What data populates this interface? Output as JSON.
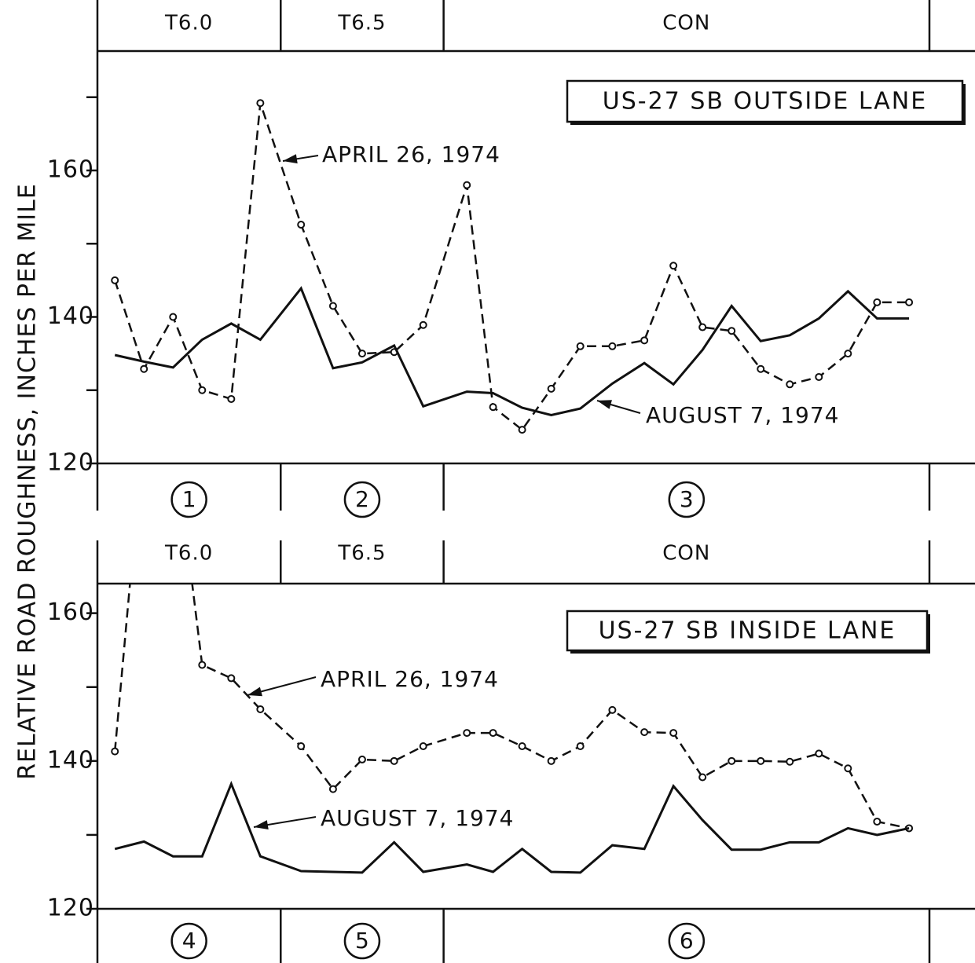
{
  "ylabel": "RELATIVE ROAD ROUGHNESS, INCHES PER MILE",
  "chart_data": [
    {
      "type": "line",
      "title": "US-27 SB OUTSIDE LANE",
      "xlim": [
        0,
        28.6
      ],
      "ylim": [
        120,
        176.3
      ],
      "yticks": [
        120,
        140,
        160
      ],
      "minor_yticks": [
        130,
        150,
        170
      ],
      "sections": [
        {
          "label": "T6.0",
          "number": "1"
        },
        {
          "label": "T6.5",
          "number": "2"
        },
        {
          "label": "CON",
          "number": "3"
        }
      ],
      "section_edges": [
        6.3,
        11.9
      ],
      "x": [
        0.6,
        1.6,
        2.6,
        3.6,
        4.6,
        5.6,
        7.0,
        8.1,
        9.1,
        10.2,
        11.2,
        12.7,
        13.6,
        14.6,
        15.6,
        16.6,
        17.7,
        18.8,
        19.8,
        20.8,
        21.8,
        22.8,
        23.8,
        24.8,
        25.8,
        26.8,
        27.9
      ],
      "series": [
        {
          "name": "APRIL 26, 1974",
          "color": "#111",
          "dashed": true,
          "markers": true,
          "values": [
            145.0,
            132.9,
            140.0,
            130.0,
            128.8,
            169.2,
            152.6,
            141.5,
            135.0,
            135.2,
            138.9,
            158.0,
            127.7,
            124.6,
            130.2,
            136.0,
            136.0,
            136.8,
            147.0,
            138.6,
            138.1,
            132.9,
            130.8,
            131.8,
            135.0,
            142.0,
            142.0
          ]
        },
        {
          "name": "AUGUST 7, 1974",
          "color": "#111",
          "dashed": false,
          "markers": false,
          "values": [
            134.8,
            133.9,
            133.1,
            136.9,
            139.1,
            136.9,
            143.9,
            133.0,
            133.8,
            136.1,
            127.8,
            129.8,
            129.6,
            127.6,
            126.6,
            127.5,
            130.9,
            133.7,
            130.8,
            135.5,
            141.5,
            136.7,
            137.5,
            139.8,
            143.5,
            139.8,
            139.8
          ]
        }
      ]
    },
    {
      "type": "line",
      "title": "US-27 SB INSIDE LANE",
      "xlim": [
        0,
        28.6
      ],
      "ylim": [
        120,
        164
      ],
      "yticks": [
        120,
        140,
        160
      ],
      "minor_yticks": [
        130,
        150
      ],
      "sections": [
        {
          "label": "T6.0",
          "number": "4"
        },
        {
          "label": "T6.5",
          "number": "5"
        },
        {
          "label": "CON",
          "number": "6"
        }
      ],
      "section_edges": [
        6.3,
        11.9
      ],
      "x": [
        0.6,
        1.6,
        2.6,
        3.6,
        4.6,
        5.6,
        7.0,
        8.1,
        9.1,
        10.2,
        11.2,
        12.7,
        13.6,
        14.6,
        15.6,
        16.6,
        17.7,
        18.8,
        19.8,
        20.8,
        21.8,
        22.8,
        23.8,
        24.8,
        25.8,
        26.8,
        27.9
      ],
      "series": [
        {
          "name": "APRIL 26, 1974",
          "color": "#111",
          "dashed": true,
          "markers": true,
          "values": [
            141.3,
            185,
            185,
            153.0,
            151.2,
            147.0,
            142.0,
            136.2,
            140.2,
            140.0,
            142.0,
            143.8,
            143.8,
            142.0,
            140.0,
            142.0,
            146.9,
            143.9,
            143.8,
            137.8,
            140.0,
            140.0,
            139.9,
            141.0,
            139.0,
            131.8,
            130.9
          ]
        },
        {
          "name": "AUGUST 7, 1974",
          "color": "#111",
          "dashed": false,
          "markers": false,
          "values": [
            128.1,
            129.1,
            127.1,
            127.1,
            136.9,
            127.1,
            125.1,
            125.0,
            124.9,
            129.0,
            125.0,
            126.0,
            125.0,
            128.1,
            125.0,
            124.9,
            128.6,
            128.1,
            136.6,
            132.0,
            128.0,
            128.0,
            129.0,
            129.0,
            130.9,
            130.0,
            130.9
          ]
        }
      ]
    }
  ]
}
